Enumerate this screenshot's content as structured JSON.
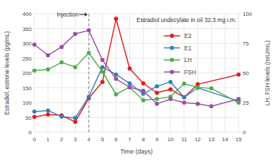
{
  "chart_data": {
    "type": "line",
    "title": "Estradiol undecylate in oil 32.3 mg i.m.",
    "x_label": "Time (days)",
    "y_label": "Estradiol, estrone levels (pg/mL)",
    "y2_label": "LH, FSH levels (mIU/mL)",
    "xlim": [
      0,
      15
    ],
    "xticks": [
      0,
      1,
      2,
      3,
      4,
      5,
      6,
      7,
      8,
      9,
      10,
      11,
      12,
      13,
      14,
      15
    ],
    "ylim": [
      0,
      400
    ],
    "yticks": [
      0,
      50,
      100,
      150,
      200,
      250,
      300,
      350,
      400
    ],
    "y2lim": [
      0,
      100
    ],
    "y2ticks": [
      0,
      25,
      50,
      75,
      100
    ],
    "grid": true,
    "legend": "top-right",
    "marker": "circle",
    "annotations": [
      {
        "text": "Injection",
        "x": 4
      }
    ],
    "series": [
      {
        "name": "E2",
        "color": "#e41a1c",
        "x": [
          0,
          1,
          2,
          3,
          4,
          5,
          6,
          7,
          8,
          9,
          10,
          11,
          12,
          15
        ],
        "values": [
          52,
          60,
          57,
          35,
          115,
          170,
          383,
          215,
          165,
          133,
          145,
          118,
          162,
          195
        ]
      },
      {
        "name": "E1",
        "color": "#377eb8",
        "x": [
          0,
          1,
          2,
          3,
          4,
          5,
          6,
          7,
          8,
          9,
          10,
          11,
          12,
          15
        ],
        "values": [
          70,
          73,
          53,
          48,
          120,
          220,
          195,
          165,
          130,
          155,
          170,
          118,
          150,
          105
        ]
      },
      {
        "name": "LH",
        "color": "#4daf4a",
        "axis": "y2",
        "x": [
          0,
          1,
          2,
          3,
          4,
          5,
          6,
          7,
          8,
          9,
          10,
          11,
          12,
          13,
          15
        ],
        "values": [
          52,
          53,
          59,
          55,
          67,
          51,
          32,
          38,
          27,
          28,
          30,
          41,
          38,
          37,
          25
        ]
      },
      {
        "name": "FSH",
        "color": "#984ea3",
        "axis": "y2",
        "x": [
          0,
          1,
          2,
          3,
          4,
          5,
          6,
          7,
          8,
          9,
          10,
          11,
          12,
          13,
          15
        ],
        "values": [
          74,
          65,
          72,
          83,
          86,
          61,
          45,
          38,
          35,
          24,
          28,
          25,
          24,
          22,
          28
        ]
      }
    ]
  }
}
